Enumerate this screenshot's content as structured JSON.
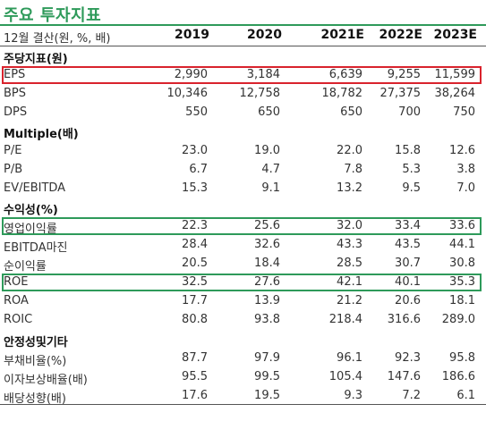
{
  "title": "주요 투자지표",
  "header": {
    "label": "12월 결산(원, %, 배)",
    "years": [
      "2019",
      "2020",
      "2021E",
      "2022E",
      "2023E"
    ]
  },
  "sections": [
    {
      "kind": "section",
      "label": "주당지표(원)"
    },
    {
      "kind": "row",
      "label": "EPS",
      "values": [
        "2,990",
        "3,184",
        "6,639",
        "9,255",
        "11,599"
      ],
      "highlight": "red"
    },
    {
      "kind": "row",
      "label": "BPS",
      "values": [
        "10,346",
        "12,758",
        "18,782",
        "27,375",
        "38,264"
      ]
    },
    {
      "kind": "row",
      "label": "DPS",
      "values": [
        "550",
        "650",
        "650",
        "700",
        "750"
      ]
    },
    {
      "kind": "section",
      "label": "Multiple(배)"
    },
    {
      "kind": "row",
      "label": "P/E",
      "values": [
        "23.0",
        "19.0",
        "22.0",
        "15.8",
        "12.6"
      ]
    },
    {
      "kind": "row",
      "label": "P/B",
      "values": [
        "6.7",
        "4.7",
        "7.8",
        "5.3",
        "3.8"
      ]
    },
    {
      "kind": "row",
      "label": "EV/EBITDA",
      "values": [
        "15.3",
        "9.1",
        "13.2",
        "9.5",
        "7.0"
      ]
    },
    {
      "kind": "section",
      "label": "수익성(%)"
    },
    {
      "kind": "row",
      "label": "영업이익률",
      "values": [
        "22.3",
        "25.6",
        "32.0",
        "33.4",
        "33.6"
      ],
      "highlight": "green"
    },
    {
      "kind": "row",
      "label": "EBITDA마진",
      "values": [
        "28.4",
        "32.6",
        "43.3",
        "43.5",
        "44.1"
      ]
    },
    {
      "kind": "row",
      "label": "순이익률",
      "values": [
        "20.5",
        "18.4",
        "28.5",
        "30.7",
        "30.8"
      ]
    },
    {
      "kind": "row",
      "label": "ROE",
      "values": [
        "32.5",
        "27.6",
        "42.1",
        "40.1",
        "35.3"
      ],
      "highlight": "green"
    },
    {
      "kind": "row",
      "label": "ROA",
      "values": [
        "17.7",
        "13.9",
        "21.2",
        "20.6",
        "18.1"
      ]
    },
    {
      "kind": "row",
      "label": "ROIC",
      "values": [
        "80.8",
        "93.8",
        "218.4",
        "316.6",
        "289.0"
      ]
    },
    {
      "kind": "section",
      "label": "안정성및기타"
    },
    {
      "kind": "row",
      "label": "부채비율(%)",
      "values": [
        "87.7",
        "97.9",
        "96.1",
        "92.3",
        "95.8"
      ]
    },
    {
      "kind": "row",
      "label": "이자보상배율(배)",
      "values": [
        "95.5",
        "99.5",
        "105.4",
        "147.6",
        "186.6"
      ]
    },
    {
      "kind": "row",
      "label": "배당성향(배)",
      "values": [
        "17.6",
        "19.5",
        "9.3",
        "7.2",
        "6.1"
      ]
    }
  ]
}
